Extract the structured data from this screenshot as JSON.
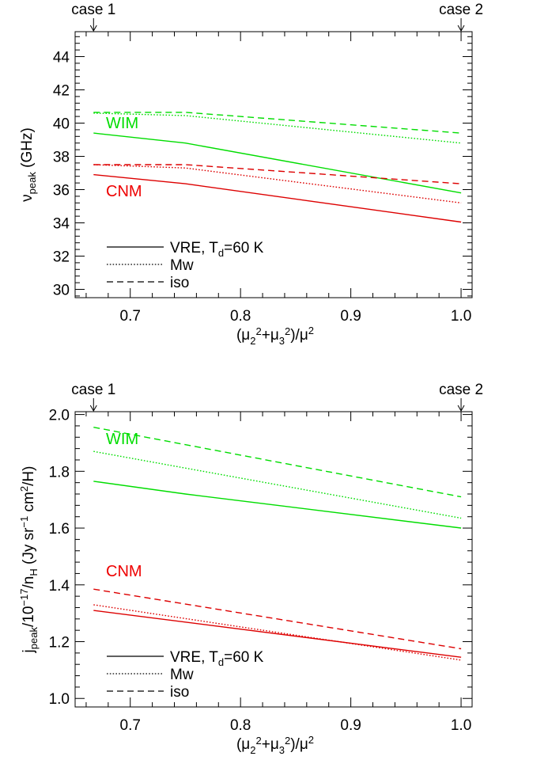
{
  "chart_data": [
    {
      "type": "line",
      "top_markers": [
        {
          "label": "case 1",
          "x": 0.6667,
          "arrow": "↓"
        },
        {
          "label": "case 2",
          "x": 1.0,
          "arrow": "↓"
        }
      ],
      "xlim": [
        0.65,
        1.01
      ],
      "ylim": [
        29.5,
        45.5
      ],
      "xticks": [
        0.7,
        0.8,
        0.9,
        1.0
      ],
      "xtick_labels": [
        "0.7",
        "0.8",
        "0.9",
        "1.0"
      ],
      "yticks": [
        30,
        32,
        34,
        36,
        38,
        40,
        42,
        44
      ],
      "ytick_labels": [
        "30",
        "32",
        "34",
        "36",
        "38",
        "40",
        "42",
        "44"
      ],
      "xlabel": {
        "base": "(μ",
        "s1": "2",
        "m1": "2",
        "p1": "+μ",
        "s2": "3",
        "m2": "2",
        "p2": ")/μ",
        "m3": "2"
      },
      "ylabel": {
        "pre": "ν",
        "sub": "peak",
        "post": " (GHz)"
      },
      "region_labels": [
        {
          "text": "WIM",
          "color": "#00dd00",
          "x": 0.678,
          "y": 39.7
        },
        {
          "text": "CNM",
          "color": "#ee0000",
          "x": 0.678,
          "y": 35.6
        }
      ],
      "legend": {
        "placement": "bottom-left",
        "entries": [
          {
            "style": "solid",
            "pre": "VRE, T",
            "sub": "d",
            "post": "=60 K"
          },
          {
            "style": "dotted",
            "pre": "Mw",
            "sub": "",
            "post": ""
          },
          {
            "style": "dashed",
            "pre": "iso",
            "sub": "",
            "post": ""
          }
        ]
      },
      "series": [
        {
          "group": "WIM",
          "style": "solid",
          "color": "#00dd00",
          "x": [
            0.6667,
            0.75,
            1.0
          ],
          "y": [
            39.4,
            38.8,
            35.8
          ]
        },
        {
          "group": "WIM",
          "style": "dotted",
          "color": "#00dd00",
          "x": [
            0.6667,
            0.75,
            1.0
          ],
          "y": [
            40.6,
            40.45,
            38.8
          ]
        },
        {
          "group": "WIM",
          "style": "dashed",
          "color": "#00dd00",
          "x": [
            0.6667,
            0.75,
            1.0
          ],
          "y": [
            40.65,
            40.65,
            39.4
          ]
        },
        {
          "group": "CNM",
          "style": "solid",
          "color": "#dd0000",
          "x": [
            0.6667,
            0.75,
            1.0
          ],
          "y": [
            36.9,
            36.35,
            34.05
          ]
        },
        {
          "group": "CNM",
          "style": "dotted",
          "color": "#dd0000",
          "x": [
            0.6667,
            0.75,
            1.0
          ],
          "y": [
            37.5,
            37.3,
            35.2
          ]
        },
        {
          "group": "CNM",
          "style": "dashed",
          "color": "#dd0000",
          "x": [
            0.6667,
            0.75,
            1.0
          ],
          "y": [
            37.5,
            37.5,
            36.35
          ]
        }
      ]
    },
    {
      "type": "line",
      "top_markers": [
        {
          "label": "case 1",
          "x": 0.6667,
          "arrow": "↓"
        },
        {
          "label": "case 2",
          "x": 1.0,
          "arrow": "↓"
        }
      ],
      "xlim": [
        0.65,
        1.01
      ],
      "ylim": [
        0.97,
        2.01
      ],
      "xticks": [
        0.7,
        0.8,
        0.9,
        1.0
      ],
      "xtick_labels": [
        "0.7",
        "0.8",
        "0.9",
        "1.0"
      ],
      "yticks": [
        1.0,
        1.2,
        1.4,
        1.6,
        1.8,
        2.0
      ],
      "ytick_labels": [
        "1.0",
        "1.2",
        "1.4",
        "1.6",
        "1.8",
        "2.0"
      ],
      "xlabel": {
        "base": "(μ",
        "s1": "2",
        "m1": "2",
        "p1": "+μ",
        "s2": "3",
        "m2": "2",
        "p2": ")/μ",
        "m3": "2"
      },
      "ylabel": {
        "a": "j",
        "a_sub": "peak",
        "b": "/10",
        "b_sup": "−17",
        "c": "/n",
        "c_sub": "H",
        "d": " (Jy sr",
        "d_sup": "−1",
        "e": " cm",
        "e_sup": "2",
        "f": "/H)"
      },
      "region_labels": [
        {
          "text": "WIM",
          "color": "#00dd00",
          "x": 0.678,
          "y": 1.895
        },
        {
          "text": "CNM",
          "color": "#ee0000",
          "x": 0.678,
          "y": 1.43
        }
      ],
      "legend": {
        "placement": "bottom-left",
        "entries": [
          {
            "style": "solid",
            "pre": "VRE, T",
            "sub": "d",
            "post": "=60 K"
          },
          {
            "style": "dotted",
            "pre": "Mw",
            "sub": "",
            "post": ""
          },
          {
            "style": "dashed",
            "pre": "iso",
            "sub": "",
            "post": ""
          }
        ]
      },
      "series": [
        {
          "group": "WIM",
          "style": "solid",
          "color": "#00dd00",
          "x": [
            0.6667,
            0.75,
            1.0
          ],
          "y": [
            1.765,
            1.72,
            1.6
          ]
        },
        {
          "group": "WIM",
          "style": "dotted",
          "color": "#00dd00",
          "x": [
            0.6667,
            1.0
          ],
          "y": [
            1.87,
            1.635
          ]
        },
        {
          "group": "WIM",
          "style": "dashed",
          "color": "#00dd00",
          "x": [
            0.6667,
            1.0
          ],
          "y": [
            1.955,
            1.71
          ]
        },
        {
          "group": "CNM",
          "style": "solid",
          "color": "#dd0000",
          "x": [
            0.6667,
            1.0
          ],
          "y": [
            1.31,
            1.145
          ]
        },
        {
          "group": "CNM",
          "style": "dotted",
          "color": "#dd0000",
          "x": [
            0.6667,
            1.0
          ],
          "y": [
            1.33,
            1.135
          ]
        },
        {
          "group": "CNM",
          "style": "dashed",
          "color": "#dd0000",
          "x": [
            0.6667,
            1.0
          ],
          "y": [
            1.385,
            1.175
          ]
        }
      ]
    }
  ]
}
